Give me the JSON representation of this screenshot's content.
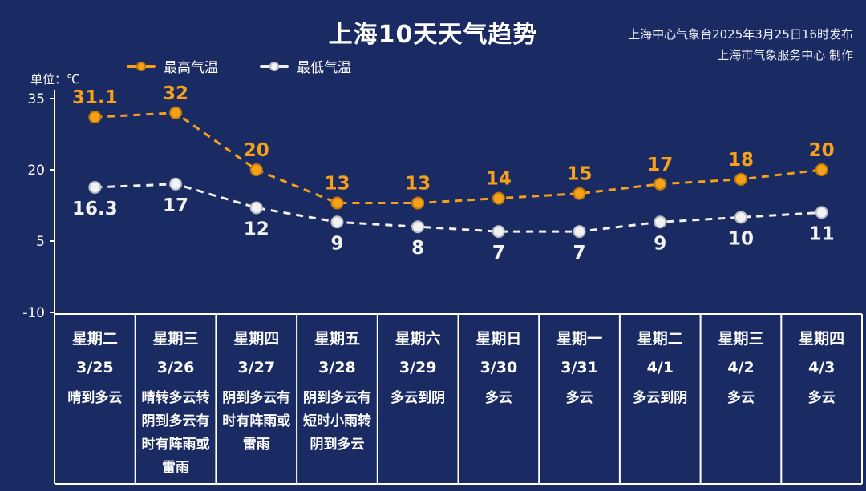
{
  "title": "上海10天天气趋势",
  "publisher": {
    "line1": "上海中心气象台2025年3月25日16时发布",
    "line2": "上海市气象服务中心 制作"
  },
  "unit_label": "单位：℃",
  "legend": {
    "max_label": "最高气温",
    "min_label": "最低气温"
  },
  "colors": {
    "background": "#1a2a62",
    "axis": "#ffffff",
    "max": "#f7a11a",
    "max_edge": "#c07c07",
    "min": "#f2f2f2",
    "min_edge": "#b9bdc9"
  },
  "chart_data": {
    "type": "line",
    "title": "上海10天天气趋势",
    "ylabel": "单位：℃",
    "ylim": [
      -10,
      35
    ],
    "yticks": [
      35,
      20,
      5,
      -10
    ],
    "grid": false,
    "legend_position": "top-left",
    "categories": [
      "3/25",
      "3/26",
      "3/27",
      "3/28",
      "3/29",
      "3/30",
      "3/31",
      "4/1",
      "4/2",
      "4/3"
    ],
    "series": [
      {
        "name": "最高气温",
        "color": "#f7a11a",
        "edge": "#c07c07",
        "values": [
          31.1,
          32,
          20,
          13,
          13,
          14,
          15,
          17,
          18,
          20
        ],
        "labels": [
          "31.1",
          "32",
          "20",
          "13",
          "13",
          "14",
          "15",
          "17",
          "18",
          "20"
        ]
      },
      {
        "name": "最低气温",
        "color": "#f2f2f2",
        "edge": "#b9bdc9",
        "values": [
          16.3,
          17,
          12,
          9,
          8,
          7,
          7,
          9,
          10,
          11
        ],
        "labels": [
          "16.3",
          "17",
          "12",
          "9",
          "8",
          "7",
          "7",
          "9",
          "10",
          "11"
        ]
      }
    ],
    "days": [
      {
        "weekday": "星期二",
        "date": "3/25",
        "weather": "晴到多云"
      },
      {
        "weekday": "星期三",
        "date": "3/26",
        "weather": "晴转多云转阴到多云有时有阵雨或雷雨"
      },
      {
        "weekday": "星期四",
        "date": "3/27",
        "weather": "阴到多云有时有阵雨或雷雨"
      },
      {
        "weekday": "星期五",
        "date": "3/28",
        "weather": "阴到多云有短时小雨转阴到多云"
      },
      {
        "weekday": "星期六",
        "date": "3/29",
        "weather": "多云到阴"
      },
      {
        "weekday": "星期日",
        "date": "3/30",
        "weather": "多云"
      },
      {
        "weekday": "星期一",
        "date": "3/31",
        "weather": "多云"
      },
      {
        "weekday": "星期二",
        "date": "4/1",
        "weather": "多云到阴"
      },
      {
        "weekday": "星期三",
        "date": "4/2",
        "weather": "多云"
      },
      {
        "weekday": "星期四",
        "date": "4/3",
        "weather": "多云"
      }
    ]
  }
}
